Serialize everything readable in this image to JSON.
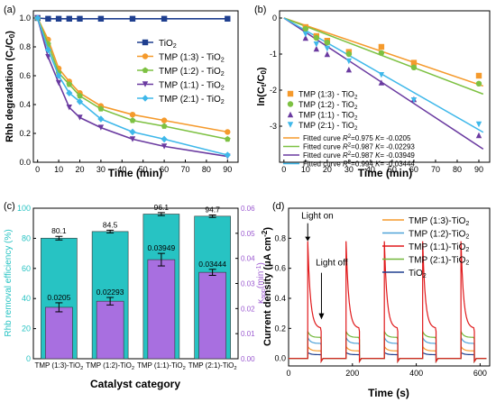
{
  "colors": {
    "tio2": "#1f3f8f",
    "tmp13": "#f59a2c",
    "tmp12": "#7dc142",
    "tmp11": "#6a3aa0",
    "tmp21": "#3fb8ea",
    "fit13": "#f59a2c",
    "fit12": "#7dc142",
    "fit11": "#6a3aa0",
    "fit21": "#3fb8ea",
    "bar_cyan": "#27c3c3",
    "bar_purple": "#a86fe0",
    "k_axis": "#9b59d0",
    "c_axis": "#27c3c3",
    "red": "#e0191b"
  },
  "chart_data": [
    {
      "panel": "(a)",
      "type": "line",
      "xlabel": "Time (min)",
      "ylabel": "Rhb degradation (Ct/C0)",
      "xlim": [
        -2,
        95
      ],
      "ylim": [
        0,
        1.05
      ],
      "xticks": [
        0,
        10,
        20,
        30,
        40,
        50,
        60,
        70,
        80,
        90
      ],
      "yticks": [
        0.0,
        0.2,
        0.4,
        0.6,
        0.8,
        1.0
      ],
      "legend_position": "top-right",
      "series": [
        {
          "name": "TiO2",
          "marker": "square",
          "x": [
            0,
            5,
            10,
            15,
            20,
            30,
            45,
            60,
            90
          ],
          "y": [
            1.0,
            0.995,
            0.995,
            0.995,
            0.995,
            0.995,
            0.995,
            0.995,
            0.995
          ]
        },
        {
          "name": "TMP (1:3) - TiO2",
          "marker": "circle",
          "x": [
            0,
            5,
            10,
            15,
            20,
            30,
            45,
            60,
            90
          ],
          "y": [
            1.0,
            0.85,
            0.65,
            0.56,
            0.48,
            0.39,
            0.33,
            0.29,
            0.21
          ]
        },
        {
          "name": "TMP (1:2) - TiO2",
          "marker": "pentagon",
          "x": [
            0,
            5,
            10,
            15,
            20,
            30,
            45,
            60,
            90
          ],
          "y": [
            1.0,
            0.82,
            0.62,
            0.54,
            0.46,
            0.37,
            0.29,
            0.25,
            0.16
          ]
        },
        {
          "name": "TMP (1:1) - TiO2",
          "marker": "triangle-down",
          "x": [
            0,
            5,
            10,
            15,
            20,
            30,
            45,
            60,
            90
          ],
          "y": [
            1.0,
            0.73,
            0.55,
            0.38,
            0.31,
            0.24,
            0.16,
            0.11,
            0.04
          ]
        },
        {
          "name": "TMP (2:1) - TiO2",
          "marker": "diamond",
          "x": [
            0,
            5,
            10,
            15,
            20,
            30,
            45,
            60,
            90
          ],
          "y": [
            1.0,
            0.78,
            0.6,
            0.48,
            0.42,
            0.3,
            0.21,
            0.16,
            0.05
          ]
        }
      ]
    },
    {
      "panel": "(b)",
      "type": "scatter",
      "xlabel": "Time (min)",
      "ylabel": "ln(Ct/C0)",
      "xlim": [
        -2,
        95
      ],
      "ylim": [
        -4.0,
        0.2
      ],
      "xticks": [
        0,
        10,
        20,
        30,
        40,
        50,
        60,
        70,
        80,
        90
      ],
      "yticks": [
        0,
        -1,
        -2,
        -3
      ],
      "legend_position": "bottom-left",
      "series": [
        {
          "name": "TMP (1:3) - TiO2",
          "marker": "square",
          "x": [
            0,
            10,
            15,
            20,
            30,
            45,
            60,
            90
          ],
          "y": [
            0,
            -0.25,
            -0.5,
            -0.63,
            -0.94,
            -0.8,
            -1.24,
            -1.6
          ]
        },
        {
          "name": "TMP (1:2) - TiO2",
          "marker": "circle",
          "x": [
            0,
            10,
            15,
            20,
            30,
            45,
            60,
            90
          ],
          "y": [
            0,
            -0.3,
            -0.55,
            -0.68,
            -1.0,
            -0.97,
            -1.37,
            -1.82
          ]
        },
        {
          "name": "TMP (1:1) - TiO2",
          "marker": "triangle-up",
          "x": [
            0,
            10,
            15,
            20,
            30,
            45,
            60,
            90
          ],
          "y": [
            0,
            -0.55,
            -0.85,
            -1.0,
            -1.43,
            -1.79,
            -2.25,
            -3.25
          ]
        },
        {
          "name": "TMP (2:1) - TiO2",
          "marker": "triangle-down",
          "x": [
            0,
            10,
            15,
            20,
            30,
            45,
            60,
            90
          ],
          "y": [
            0,
            -0.45,
            -0.73,
            -0.85,
            -1.2,
            -1.58,
            -2.28,
            -2.95
          ]
        }
      ],
      "fits": [
        {
          "label": "Fitted curve R2=0.975 K= -0.0205",
          "r2": "0.975",
          "k": -0.0205
        },
        {
          "label": "Fitted curve R2=0.987 K= -0.02293",
          "r2": "0.987",
          "k": -0.02293
        },
        {
          "label": "Fitted curve R2=0.987 K= -0.03949",
          "r2": "0.987",
          "k": -0.03949
        },
        {
          "label": "Fitted curve R2=0.994 K= -0.03444",
          "r2": "0.994",
          "k": -0.03444
        }
      ]
    },
    {
      "panel": "(c)",
      "type": "bar",
      "xlabel": "Catalyst category",
      "ylabel": "Rhb removal efficiency (%)",
      "ylabel2": "Kapp (min-1)",
      "ylim": [
        0,
        100
      ],
      "ylim2": [
        0,
        0.06
      ],
      "yticks": [
        0,
        20,
        40,
        60,
        80,
        100
      ],
      "yticks2": [
        0.0,
        0.01,
        0.02,
        0.03,
        0.04,
        0.05,
        0.06
      ],
      "categories": [
        "TMP (1:3)-TiO2",
        "TMP (1:2)-TiO2",
        "TMP (1:1)-TiO2",
        "TMP (2:1)-TiO2"
      ],
      "series": [
        {
          "name": "removal",
          "values": [
            80.1,
            84.5,
            96.1,
            94.7
          ],
          "errors": [
            1.2,
            0.9,
            1.0,
            0.8
          ],
          "labels": [
            "80.1",
            "84.5",
            "96.1",
            "94.7"
          ]
        },
        {
          "name": "kapp",
          "values": [
            0.0205,
            0.02293,
            0.03949,
            0.03444
          ],
          "errors": [
            0.0018,
            0.0015,
            0.0025,
            0.0012
          ],
          "labels": [
            "0.0205",
            "0.02293",
            "0.03949",
            "0.03444"
          ]
        }
      ]
    },
    {
      "panel": "(d)",
      "type": "line",
      "xlabel": "Time (s)",
      "ylabel": "Current density (μA cm-2)",
      "xlim": [
        0,
        630
      ],
      "ylim": [
        -0.05,
        1.0
      ],
      "xticks": [
        0,
        200,
        400,
        600
      ],
      "yticks": [
        0.0,
        0.2,
        0.4,
        0.6,
        0.8
      ],
      "legend_position": "top-right",
      "annotations": [
        "Light on",
        "Light off"
      ],
      "pulses": [
        60,
        180,
        300,
        420,
        540
      ],
      "series": [
        {
          "name": "TMP (1:3)-TiO2",
          "peak": 0.08,
          "plateau": 0.05
        },
        {
          "name": "TMP (1:2)-TiO2",
          "peak": 0.14,
          "plateau": 0.1
        },
        {
          "name": "TMP (1:1)-TiO2",
          "peak": 0.78,
          "plateau": 0.2
        },
        {
          "name": "TMP (2:1)-TiO2",
          "peak": 0.18,
          "plateau": 0.14
        },
        {
          "name": "TiO2",
          "peak": 0.04,
          "plateau": 0.025
        }
      ]
    }
  ],
  "text": {
    "a_panel": "(a)",
    "a_x": "Time (min)",
    "b_panel": "(b)",
    "b_x": "Time (min)",
    "c_panel": "(c)",
    "c_x": "Catalyst category",
    "c_y": "Rhb removal efficiency (%)",
    "d_panel": "(d)",
    "d_x": "Time (s)",
    "light_on": "Light on",
    "light_off": "Light off"
  }
}
